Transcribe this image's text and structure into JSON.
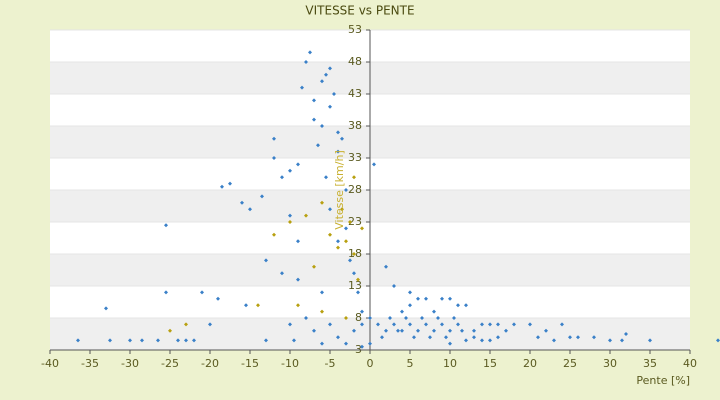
{
  "chart_data": {
    "type": "scatter",
    "title": "VITESSE vs PENTE",
    "x_label": "Pente [%]",
    "y_label": "Vitesse [km/h]",
    "xlim": [
      -40,
      40
    ],
    "xticks": [
      -40,
      -35,
      -30,
      -25,
      -20,
      -15,
      -10,
      -5,
      0,
      5,
      10,
      15,
      20,
      25,
      30,
      35,
      40
    ],
    "ylim": [
      3,
      53
    ],
    "yticks": [
      3,
      8,
      13,
      18,
      23,
      28,
      33,
      38,
      43,
      48,
      53
    ],
    "grid": true,
    "series": [
      {
        "color": "#3a80c8",
        "x": [
          -36.5,
          -33,
          -32.5,
          -30,
          -28.5,
          -26.5,
          -25.5,
          -25.5,
          -24,
          -23,
          -22,
          -21,
          -20,
          -19,
          -18.5,
          -17.5,
          -16,
          -15.5,
          -15,
          -13.5,
          -13,
          -12,
          -12,
          -11,
          -10,
          -10,
          -9,
          -9,
          -8.5,
          -8,
          -7.5,
          -7,
          -7,
          -6.5,
          -6,
          -6,
          -5.5,
          -5.5,
          -5,
          -5,
          -5,
          -4.5,
          -4,
          -4,
          -4,
          -3.5,
          -3,
          -3,
          -2.5,
          -2,
          -1.5,
          -1,
          -8,
          -7,
          -6,
          -5,
          -4,
          -3,
          -2,
          -1,
          -9,
          -11,
          -10,
          -13,
          -9.5,
          -6,
          -1,
          0,
          0.5,
          0,
          1,
          2,
          3,
          4,
          5,
          6,
          7,
          8,
          9,
          10,
          11,
          1.5,
          2.5,
          3.5,
          4.5,
          5.5,
          6.5,
          7.5,
          8.5,
          9.5,
          10.5,
          11.5,
          12,
          13,
          14,
          15,
          16,
          17,
          18,
          20,
          21,
          22,
          23,
          24,
          25,
          26,
          28,
          30,
          31.5,
          32,
          35,
          43.5,
          3,
          5,
          7,
          8,
          10,
          11,
          13,
          14,
          15,
          16,
          12,
          10,
          2,
          4,
          6,
          9,
          5
        ],
        "values": [
          4.5,
          9.5,
          4.5,
          4.5,
          4.5,
          4.5,
          22.5,
          12,
          4.5,
          4.5,
          4.5,
          12,
          7,
          11,
          28.5,
          29,
          26,
          10,
          25,
          27,
          17,
          36,
          33,
          30,
          24,
          31,
          32,
          14,
          44,
          48,
          49.5,
          42,
          39,
          35,
          45,
          38,
          46,
          30,
          47,
          41,
          25,
          43,
          37,
          34,
          20,
          36,
          28,
          22,
          17,
          15,
          12,
          9,
          8,
          6,
          12,
          7,
          5,
          4,
          6,
          7,
          20,
          15,
          7,
          4.5,
          4.5,
          4,
          3.5,
          4,
          32,
          8,
          7,
          6,
          7,
          6,
          7,
          6,
          7,
          6,
          7,
          6,
          7,
          5,
          8,
          6,
          8,
          5,
          8,
          5,
          8,
          5,
          8,
          6,
          10,
          6,
          7,
          7,
          7,
          6,
          7,
          7,
          5,
          6,
          4.5,
          7,
          5,
          5,
          5,
          4.5,
          4.5,
          5.5,
          4.5,
          4.5,
          13,
          10,
          11,
          9,
          11,
          10,
          5,
          4.5,
          4.5,
          5,
          4.5,
          4,
          16,
          9,
          11,
          11,
          12
        ]
      },
      {
        "color": "#b8a010",
        "x": [
          -23,
          -25,
          -14,
          -12,
          -10,
          -8,
          -7,
          -6,
          -5,
          -4,
          -3.5,
          -3,
          -2.5,
          -2,
          -1.5,
          -3,
          -1,
          -2,
          -9,
          -6
        ],
        "values": [
          7,
          6,
          10,
          21,
          23,
          24,
          16,
          26,
          21,
          19,
          25,
          20,
          23,
          18,
          14,
          8,
          22,
          30,
          10,
          9
        ]
      }
    ]
  }
}
